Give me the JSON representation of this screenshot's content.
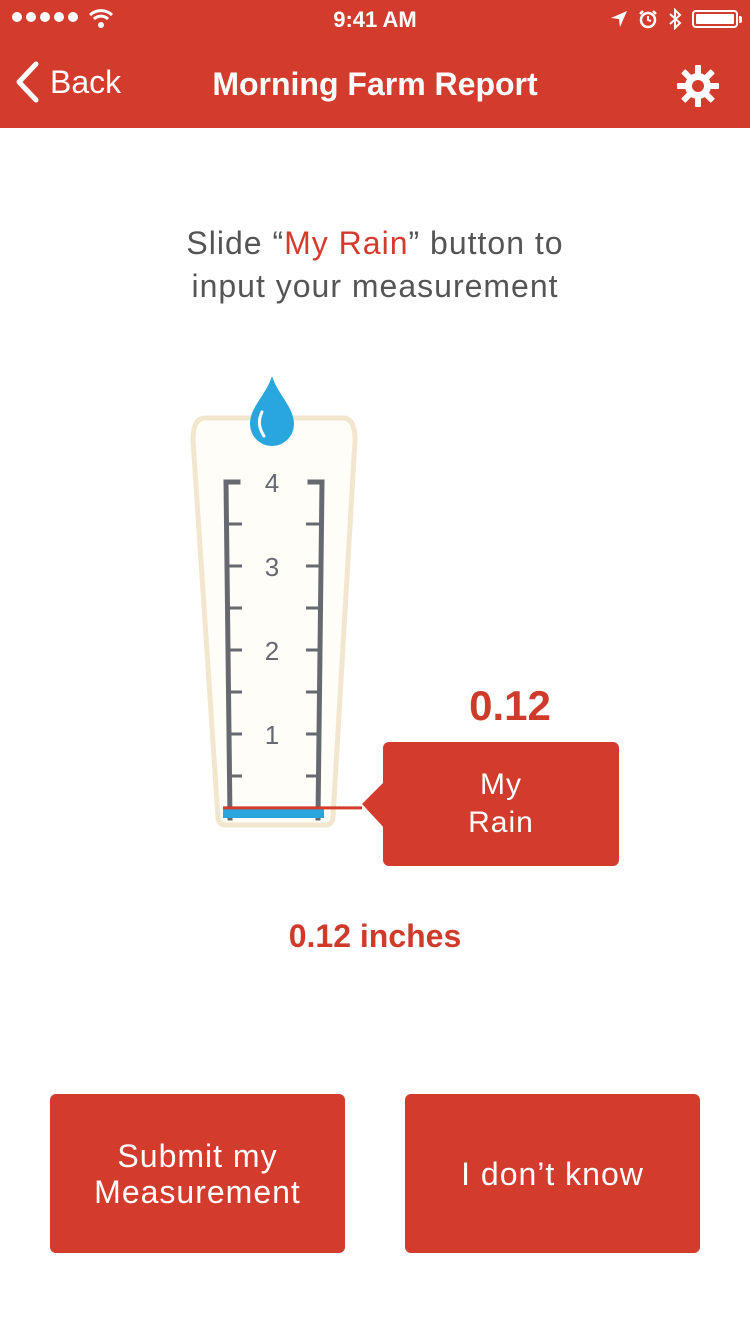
{
  "status_bar": {
    "time": "9:41 AM"
  },
  "nav": {
    "back_label": "Back",
    "title": "Morning Farm Report"
  },
  "instruction": {
    "pre": "Slide “",
    "highlight": "My Rain",
    "post": "” button to",
    "line2": "input your measurement"
  },
  "gauge": {
    "ticks": [
      "4",
      "3",
      "2",
      "1"
    ],
    "max": 4,
    "level": 0.12,
    "value_display": "0.12"
  },
  "slider": {
    "line1": "My",
    "line2": "Rain"
  },
  "measurement": {
    "value": "0.12",
    "unit": "inches"
  },
  "actions": {
    "submit_line1": "Submit my",
    "submit_line2": "Measurement",
    "dont_know": "I don’t know"
  },
  "colors": {
    "brand_red": "#d33b2c",
    "water_blue": "#2aa6df",
    "text_gray": "#555555"
  }
}
